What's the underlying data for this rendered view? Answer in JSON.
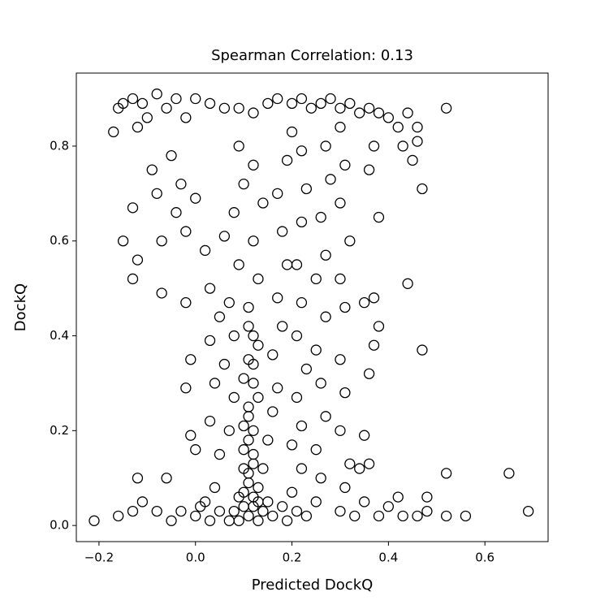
{
  "chart_data": {
    "type": "scatter",
    "title": "Spearman Correlation: 0.13",
    "x_label": "Predicted DockQ",
    "y_label": "DockQ",
    "color": "#000000",
    "xlim": [
      -0.247,
      0.731
    ],
    "ylim": [
      -0.034,
      0.954
    ],
    "xticks": [
      {
        "value": -0.2,
        "label": "−0.2"
      },
      {
        "value": 0,
        "label": "0.0"
      },
      0.2,
      0.4,
      0.6
    ],
    "yticks": [
      {
        "value": 0,
        "label": "0.0"
      },
      0.2,
      0.4,
      0.6,
      0.8
    ],
    "x": [
      -0.17,
      -0.16,
      -0.15,
      -0.13,
      -0.11,
      -0.1,
      -0.08,
      -0.06,
      -0.04,
      -0.02,
      0,
      0.03,
      0.06,
      0.09,
      0.12,
      0.15,
      0.17,
      0.2,
      0.22,
      0.24,
      0.26,
      0.28,
      0.3,
      0.32,
      0.34,
      0.36,
      0.38,
      0.4,
      0.42,
      0.44,
      0.46,
      0.52,
      0.43,
      0.45,
      0.47,
      0.46,
      -0.12,
      -0.09,
      -0.05,
      -0.08,
      -0.03,
      0,
      -0.04,
      -0.13,
      -0.15,
      -0.12,
      -0.07,
      -0.02,
      0.02,
      -0.13,
      -0.07,
      -0.02,
      0.03,
      0.05,
      0.03,
      -0.01,
      -0.02,
      0.04,
      0.03,
      -0.01,
      0,
      -0.06,
      -0.12,
      -0.13,
      -0.16,
      -0.21,
      -0.11,
      -0.08,
      -0.05,
      -0.03,
      0,
      0.02,
      0.04,
      0.05,
      0.07,
      0.08,
      0.06,
      0.08,
      0.07,
      0.09,
      0.06,
      0.08,
      0.1,
      0.09,
      0.12,
      0.14,
      0.12,
      0.13,
      0.11,
      0.12,
      0.11,
      0.12,
      0.11,
      0.1,
      0.11,
      0.12,
      0.1,
      0.11,
      0.12,
      0.1,
      0.11,
      0.13,
      0.09,
      0.08,
      0.14,
      0.15,
      0.13,
      0.14,
      0.15,
      0.16,
      0.17,
      0.16,
      0.18,
      0.17,
      0.19,
      0.18,
      0.17,
      0.19,
      0.2,
      0.22,
      0.23,
      0.22,
      0.21,
      0.22,
      0.21,
      0.23,
      0.21,
      0.22,
      0.2,
      0.22,
      0.2,
      0.21,
      0.23,
      0.25,
      0.26,
      0.25,
      0.27,
      0.26,
      0.25,
      0.27,
      0.25,
      0.27,
      0.26,
      0.28,
      0.27,
      0.3,
      0.31,
      0.3,
      0.32,
      0.3,
      0.31,
      0.3,
      0.31,
      0.3,
      0.32,
      0.31,
      0.3,
      0.33,
      0.35,
      0.34,
      0.36,
      0.35,
      0.36,
      0.37,
      0.38,
      0.35,
      0.37,
      0.38,
      0.36,
      0.37,
      0.38,
      0.4,
      0.42,
      0.44,
      0.47,
      0.48,
      0.48,
      0.46,
      0.43,
      0.52,
      0.52,
      0.56,
      0.65,
      0.69,
      0.11,
      0.12,
      0.1,
      0.12,
      0.11,
      0.13,
      0.1,
      0.12,
      0.13,
      0.11,
      0.1,
      0.12,
      0.13,
      0.09,
      0.05,
      0.16,
      0.18,
      0.19,
      0.07,
      0.03,
      0.01
    ],
    "values": [
      0.83,
      0.88,
      0.89,
      0.9,
      0.89,
      0.86,
      0.91,
      0.88,
      0.9,
      0.86,
      0.9,
      0.89,
      0.88,
      0.88,
      0.87,
      0.89,
      0.9,
      0.89,
      0.9,
      0.88,
      0.89,
      0.9,
      0.88,
      0.89,
      0.87,
      0.88,
      0.87,
      0.86,
      0.84,
      0.87,
      0.84,
      0.88,
      0.8,
      0.77,
      0.71,
      0.81,
      0.84,
      0.75,
      0.78,
      0.7,
      0.72,
      0.69,
      0.66,
      0.67,
      0.6,
      0.56,
      0.6,
      0.62,
      0.58,
      0.52,
      0.49,
      0.47,
      0.5,
      0.44,
      0.39,
      0.35,
      0.29,
      0.3,
      0.22,
      0.19,
      0.16,
      0.1,
      0.1,
      0.03,
      0.02,
      0.01,
      0.05,
      0.03,
      0.01,
      0.03,
      0.02,
      0.05,
      0.08,
      0.15,
      0.2,
      0.27,
      0.34,
      0.4,
      0.47,
      0.55,
      0.61,
      0.66,
      0.72,
      0.8,
      0.76,
      0.68,
      0.6,
      0.52,
      0.46,
      0.4,
      0.35,
      0.3,
      0.25,
      0.21,
      0.18,
      0.15,
      0.12,
      0.09,
      0.06,
      0.04,
      0.02,
      0.01,
      0.01,
      0.03,
      0.03,
      0.05,
      0.08,
      0.12,
      0.18,
      0.24,
      0.29,
      0.36,
      0.42,
      0.48,
      0.55,
      0.62,
      0.7,
      0.77,
      0.83,
      0.79,
      0.71,
      0.64,
      0.55,
      0.47,
      0.4,
      0.33,
      0.27,
      0.21,
      0.17,
      0.12,
      0.07,
      0.03,
      0.02,
      0.05,
      0.1,
      0.16,
      0.23,
      0.3,
      0.37,
      0.44,
      0.52,
      0.57,
      0.65,
      0.73,
      0.8,
      0.84,
      0.76,
      0.68,
      0.6,
      0.52,
      0.46,
      0.35,
      0.28,
      0.2,
      0.13,
      0.08,
      0.03,
      0.02,
      0.05,
      0.12,
      0.13,
      0.19,
      0.32,
      0.38,
      0.42,
      0.47,
      0.48,
      0.65,
      0.75,
      0.8,
      0.02,
      0.04,
      0.06,
      0.51,
      0.37,
      0.06,
      0.03,
      0.02,
      0.02,
      0.11,
      0.02,
      0.02,
      0.11,
      0.03,
      0.11,
      0.13,
      0.16,
      0.2,
      0.23,
      0.27,
      0.31,
      0.34,
      0.38,
      0.42,
      0.07,
      0.04,
      0.05,
      0.06,
      0.03,
      0.02,
      0.04,
      0.01,
      0.01,
      0.01,
      0.04
    ]
  }
}
